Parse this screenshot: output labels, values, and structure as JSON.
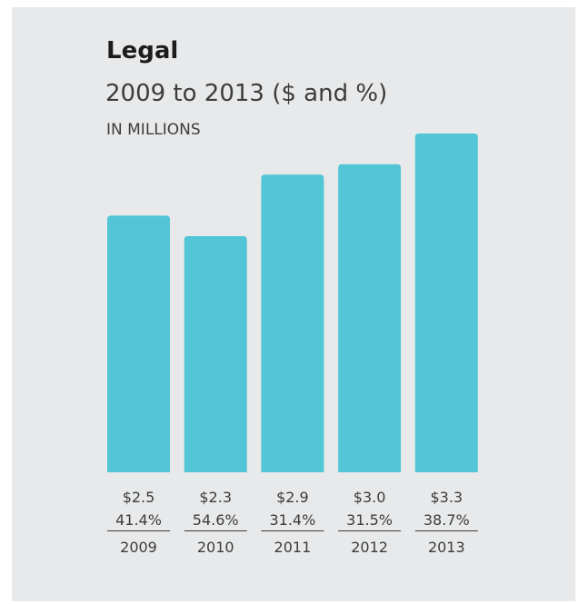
{
  "header": {
    "title": "Legal",
    "subtitle": "2009 to 2013 ($ and %)",
    "units": "IN MILLIONS"
  },
  "colors": {
    "background": "#e8e9ea",
    "bar": "#52c6d7",
    "text": "#3c3c3c"
  },
  "chart_data": {
    "type": "bar",
    "title": "Legal",
    "subtitle": "2009 to 2013 ($ and %)",
    "unit_label": "IN MILLIONS",
    "categories": [
      "2009",
      "2010",
      "2011",
      "2012",
      "2013"
    ],
    "values": [
      2.5,
      2.3,
      2.9,
      3.0,
      3.3
    ],
    "value_labels": [
      "$2.5",
      "$2.3",
      "$2.9",
      "$3.0",
      "$3.3"
    ],
    "percent_labels": [
      "41.4%",
      "54.6%",
      "31.4%",
      "31.5%",
      "38.7%"
    ],
    "ylim": [
      0,
      3.3
    ],
    "grid": false,
    "legend": "none"
  }
}
